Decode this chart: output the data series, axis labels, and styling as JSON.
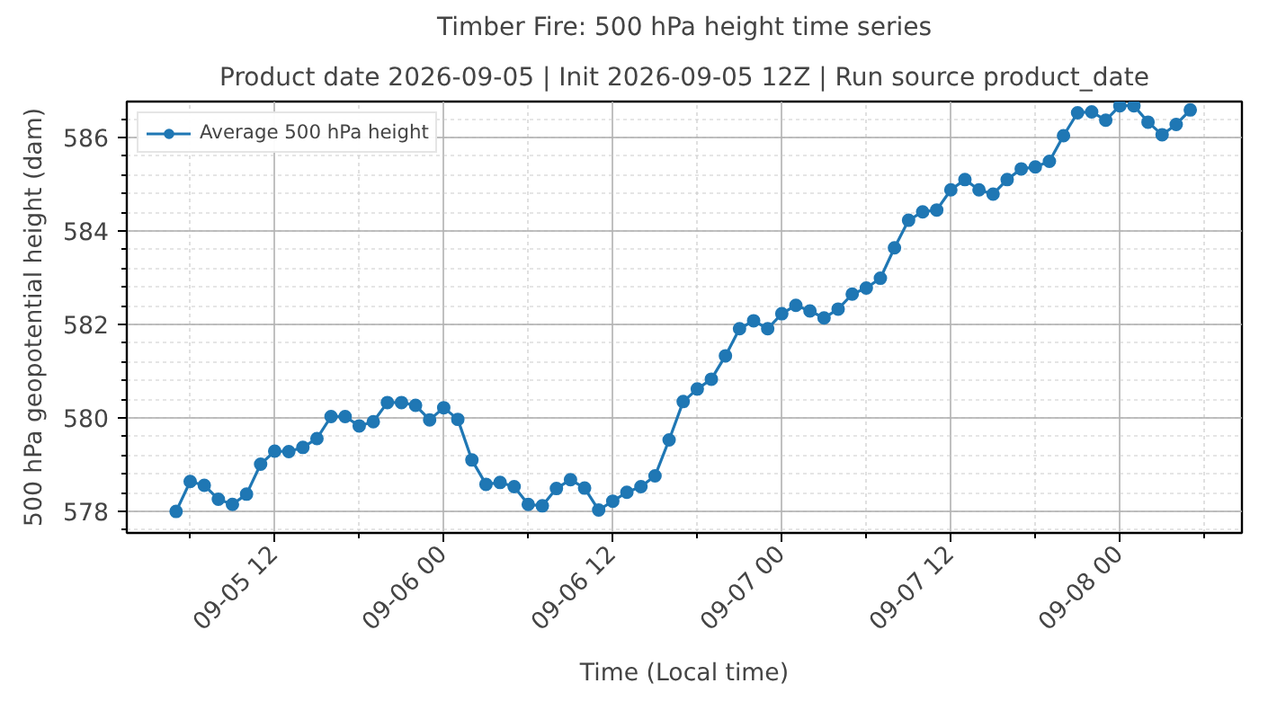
{
  "chart_data": {
    "type": "line",
    "title": "Timber Fire: 500 hPa height time series",
    "subtitle": "Product date 2026-09-05 | Init 2026-09-05 12Z | Run source product_date",
    "xlabel": "Time (Local time)",
    "ylabel": "500 hPa geopotential height (dam)",
    "x": [
      "2026-09-05T05:00",
      "2026-09-05T06:00",
      "2026-09-05T07:00",
      "2026-09-05T08:00",
      "2026-09-05T09:00",
      "2026-09-05T10:00",
      "2026-09-05T11:00",
      "2026-09-05T12:00",
      "2026-09-05T13:00",
      "2026-09-05T14:00",
      "2026-09-05T15:00",
      "2026-09-05T16:00",
      "2026-09-05T17:00",
      "2026-09-05T18:00",
      "2026-09-05T19:00",
      "2026-09-05T20:00",
      "2026-09-05T21:00",
      "2026-09-05T22:00",
      "2026-09-05T23:00",
      "2026-09-06T00:00",
      "2026-09-06T01:00",
      "2026-09-06T02:00",
      "2026-09-06T03:00",
      "2026-09-06T04:00",
      "2026-09-06T05:00",
      "2026-09-06T06:00",
      "2026-09-06T07:00",
      "2026-09-06T08:00",
      "2026-09-06T09:00",
      "2026-09-06T10:00",
      "2026-09-06T11:00",
      "2026-09-06T12:00",
      "2026-09-06T13:00",
      "2026-09-06T14:00",
      "2026-09-06T15:00",
      "2026-09-06T16:00",
      "2026-09-06T17:00",
      "2026-09-06T18:00",
      "2026-09-06T19:00",
      "2026-09-06T20:00",
      "2026-09-06T21:00",
      "2026-09-06T22:00",
      "2026-09-06T23:00",
      "2026-09-07T00:00",
      "2026-09-07T01:00",
      "2026-09-07T02:00",
      "2026-09-07T03:00",
      "2026-09-07T04:00",
      "2026-09-07T05:00",
      "2026-09-07T06:00",
      "2026-09-07T07:00",
      "2026-09-07T08:00",
      "2026-09-07T09:00",
      "2026-09-07T10:00",
      "2026-09-07T11:00",
      "2026-09-07T12:00",
      "2026-09-07T13:00",
      "2026-09-07T14:00",
      "2026-09-07T15:00",
      "2026-09-07T16:00",
      "2026-09-07T17:00",
      "2026-09-07T18:00",
      "2026-09-07T19:00",
      "2026-09-07T20:00",
      "2026-09-07T21:00",
      "2026-09-07T22:00",
      "2026-09-07T23:00",
      "2026-09-08T00:00",
      "2026-09-08T01:00",
      "2026-09-08T02:00",
      "2026-09-08T03:00",
      "2026-09-08T04:00",
      "2026-09-08T05:00"
    ],
    "series": [
      {
        "name": "Average 500 hPa height",
        "color": "#1f77b4",
        "values": [
          578.0,
          578.64,
          578.56,
          578.26,
          578.15,
          578.37,
          579.01,
          579.29,
          579.28,
          579.37,
          579.56,
          580.03,
          580.03,
          579.83,
          579.92,
          580.33,
          580.33,
          580.27,
          579.96,
          580.22,
          579.97,
          579.1,
          578.58,
          578.62,
          578.53,
          578.15,
          578.12,
          578.49,
          578.68,
          578.5,
          578.03,
          578.22,
          578.41,
          578.53,
          578.76,
          579.53,
          580.35,
          580.62,
          580.83,
          581.33,
          581.91,
          582.08,
          581.91,
          582.23,
          582.41,
          582.29,
          582.14,
          582.33,
          582.65,
          582.78,
          582.99,
          583.64,
          584.23,
          584.41,
          584.45,
          584.88,
          585.1,
          584.88,
          584.79,
          585.1,
          585.33,
          585.37,
          585.49,
          586.04,
          586.53,
          586.55,
          586.37,
          586.68,
          586.68,
          586.33,
          586.06,
          586.28,
          586.59
        ]
      }
    ],
    "xlim": [
      "2026-09-05T01:30",
      "2026-09-08T08:40"
    ],
    "xticks": [
      {
        "value": "2026-09-05T06:00",
        "label": null
      },
      {
        "value": "2026-09-05T12:00",
        "label": "09-05 12"
      },
      {
        "value": "2026-09-05T18:00",
        "label": null
      },
      {
        "value": "2026-09-06T00:00",
        "label": "09-06 00"
      },
      {
        "value": "2026-09-06T06:00",
        "label": null
      },
      {
        "value": "2026-09-06T12:00",
        "label": "09-06 12"
      },
      {
        "value": "2026-09-06T18:00",
        "label": null
      },
      {
        "value": "2026-09-07T00:00",
        "label": "09-07 00"
      },
      {
        "value": "2026-09-07T06:00",
        "label": null
      },
      {
        "value": "2026-09-07T12:00",
        "label": "09-07 12"
      },
      {
        "value": "2026-09-07T18:00",
        "label": null
      },
      {
        "value": "2026-09-08T00:00",
        "label": "09-08 00"
      },
      {
        "value": "2026-09-08T06:00",
        "label": null
      }
    ],
    "ylim": [
      577.54,
      586.77
    ],
    "yticks": [
      578,
      580,
      582,
      584,
      586
    ],
    "grid": true,
    "legend": "top left",
    "marker": "circle",
    "line_style": "solid"
  }
}
